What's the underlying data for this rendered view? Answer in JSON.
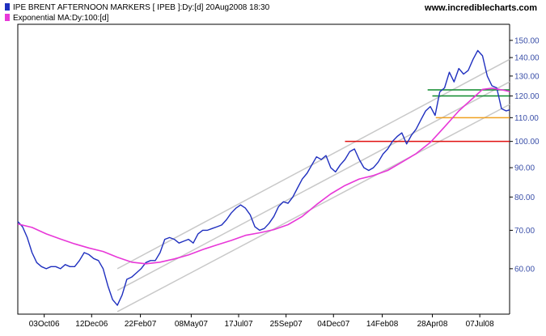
{
  "header": {
    "legend": [
      {
        "label": "IPE BRENT AFTERNOON MARKERS [ IPEB ]:Dy:[d]  20Aug2008 18:30",
        "color": "#1f2fbf"
      },
      {
        "label": "Exponential MA:Dy:100:[d]",
        "color": "#e838d8"
      }
    ],
    "brand": "www.incrediblecharts.com"
  },
  "chart_data": {
    "type": "line",
    "y_scale": "log",
    "ylim": [
      50,
      160
    ],
    "y_ticks": [
      60,
      70,
      80,
      90,
      100,
      110,
      120,
      130,
      140,
      150
    ],
    "y_tick_labels": [
      "60.00",
      "70.00",
      "80.00",
      "90.00",
      "100.00",
      "110.00",
      "120.00",
      "130.00",
      "140.00",
      "150.00"
    ],
    "xlim": [
      "2006-08-25",
      "2008-08-20"
    ],
    "x_ticks": [
      "2006-10-03",
      "2006-12-12",
      "2007-02-22",
      "2007-05-08",
      "2007-07-17",
      "2007-09-25",
      "2007-12-04",
      "2008-02-14",
      "2008-04-28",
      "2008-07-07"
    ],
    "x_tick_labels": [
      "03Oct06",
      "12Dec06",
      "22Feb07",
      "08May07",
      "17Jul07",
      "25Sep07",
      "04Dec07",
      "14Feb08",
      "28Apr08",
      "07Jul08"
    ],
    "series": [
      {
        "name": "IPE BRENT AFTERNOON MARKERS",
        "color": "#1f2fbf",
        "points": [
          [
            "2006-08-25",
            72.5
          ],
          [
            "2006-09-01",
            71.0
          ],
          [
            "2006-09-08",
            68.0
          ],
          [
            "2006-09-15",
            64.0
          ],
          [
            "2006-09-22",
            61.5
          ],
          [
            "2006-09-29",
            60.5
          ],
          [
            "2006-10-06",
            60.0
          ],
          [
            "2006-10-13",
            60.5
          ],
          [
            "2006-10-20",
            60.5
          ],
          [
            "2006-10-27",
            60.0
          ],
          [
            "2006-11-03",
            61.0
          ],
          [
            "2006-11-10",
            60.5
          ],
          [
            "2006-11-17",
            60.5
          ],
          [
            "2006-11-24",
            62.0
          ],
          [
            "2006-12-01",
            64.0
          ],
          [
            "2006-12-08",
            63.5
          ],
          [
            "2006-12-15",
            62.5
          ],
          [
            "2006-12-22",
            62.0
          ],
          [
            "2006-12-29",
            60.0
          ],
          [
            "2007-01-05",
            56.0
          ],
          [
            "2007-01-12",
            53.0
          ],
          [
            "2007-01-19",
            51.8
          ],
          [
            "2007-01-26",
            54.0
          ],
          [
            "2007-02-02",
            57.5
          ],
          [
            "2007-02-09",
            58.0
          ],
          [
            "2007-02-16",
            59.0
          ],
          [
            "2007-02-23",
            60.0
          ],
          [
            "2007-03-02",
            61.5
          ],
          [
            "2007-03-09",
            62.0
          ],
          [
            "2007-03-16",
            62.0
          ],
          [
            "2007-03-23",
            64.0
          ],
          [
            "2007-03-30",
            67.5
          ],
          [
            "2007-04-06",
            68.0
          ],
          [
            "2007-04-13",
            67.5
          ],
          [
            "2007-04-20",
            66.5
          ],
          [
            "2007-04-27",
            67.0
          ],
          [
            "2007-05-04",
            67.5
          ],
          [
            "2007-05-11",
            66.5
          ],
          [
            "2007-05-18",
            69.0
          ],
          [
            "2007-05-25",
            70.0
          ],
          [
            "2007-06-01",
            70.0
          ],
          [
            "2007-06-08",
            70.5
          ],
          [
            "2007-06-15",
            71.0
          ],
          [
            "2007-06-22",
            71.5
          ],
          [
            "2007-06-29",
            73.0
          ],
          [
            "2007-07-06",
            75.0
          ],
          [
            "2007-07-13",
            76.5
          ],
          [
            "2007-07-20",
            77.5
          ],
          [
            "2007-07-27",
            76.5
          ],
          [
            "2007-08-03",
            74.5
          ],
          [
            "2007-08-10",
            71.0
          ],
          [
            "2007-08-17",
            70.0
          ],
          [
            "2007-08-24",
            70.5
          ],
          [
            "2007-08-31",
            72.0
          ],
          [
            "2007-09-07",
            74.0
          ],
          [
            "2007-09-14",
            77.0
          ],
          [
            "2007-09-21",
            78.5
          ],
          [
            "2007-09-28",
            78.0
          ],
          [
            "2007-10-05",
            80.0
          ],
          [
            "2007-10-12",
            83.0
          ],
          [
            "2007-10-19",
            86.0
          ],
          [
            "2007-10-26",
            88.0
          ],
          [
            "2007-11-02",
            91.0
          ],
          [
            "2007-11-09",
            94.0
          ],
          [
            "2007-11-16",
            93.0
          ],
          [
            "2007-11-23",
            94.5
          ],
          [
            "2007-11-30",
            90.0
          ],
          [
            "2007-12-07",
            88.5
          ],
          [
            "2007-12-14",
            91.0
          ],
          [
            "2007-12-21",
            93.0
          ],
          [
            "2007-12-28",
            96.0
          ],
          [
            "2008-01-04",
            97.0
          ],
          [
            "2008-01-11",
            93.0
          ],
          [
            "2008-01-18",
            90.0
          ],
          [
            "2008-01-25",
            89.0
          ],
          [
            "2008-02-01",
            90.0
          ],
          [
            "2008-02-08",
            92.0
          ],
          [
            "2008-02-15",
            95.0
          ],
          [
            "2008-02-22",
            97.0
          ],
          [
            "2008-02-29",
            100.0
          ],
          [
            "2008-03-07",
            102.0
          ],
          [
            "2008-03-14",
            103.5
          ],
          [
            "2008-03-21",
            99.0
          ],
          [
            "2008-03-28",
            102.5
          ],
          [
            "2008-04-04",
            105.0
          ],
          [
            "2008-04-11",
            109.0
          ],
          [
            "2008-04-18",
            113.0
          ],
          [
            "2008-04-25",
            115.0
          ],
          [
            "2008-05-02",
            111.0
          ],
          [
            "2008-05-09",
            122.0
          ],
          [
            "2008-05-16",
            124.0
          ],
          [
            "2008-05-23",
            132.0
          ],
          [
            "2008-05-30",
            127.0
          ],
          [
            "2008-06-06",
            134.0
          ],
          [
            "2008-06-13",
            131.0
          ],
          [
            "2008-06-20",
            133.0
          ],
          [
            "2008-06-27",
            139.0
          ],
          [
            "2008-07-04",
            144.0
          ],
          [
            "2008-07-11",
            141.0
          ],
          [
            "2008-07-18",
            130.0
          ],
          [
            "2008-07-25",
            125.0
          ],
          [
            "2008-08-01",
            124.0
          ],
          [
            "2008-08-08",
            114.0
          ],
          [
            "2008-08-15",
            113.0
          ],
          [
            "2008-08-20",
            113.5
          ]
        ]
      },
      {
        "name": "Exponential MA:Dy:100:[d]",
        "color": "#e838d8",
        "points": [
          [
            "2006-08-25",
            71.8
          ],
          [
            "2006-09-15",
            70.8
          ],
          [
            "2006-10-06",
            69.0
          ],
          [
            "2006-10-27",
            67.6
          ],
          [
            "2006-11-17",
            66.3
          ],
          [
            "2006-12-08",
            65.2
          ],
          [
            "2006-12-29",
            64.3
          ],
          [
            "2007-01-19",
            62.8
          ],
          [
            "2007-02-09",
            61.6
          ],
          [
            "2007-03-02",
            61.2
          ],
          [
            "2007-03-23",
            61.6
          ],
          [
            "2007-04-13",
            62.4
          ],
          [
            "2007-05-04",
            63.4
          ],
          [
            "2007-05-25",
            64.8
          ],
          [
            "2007-06-15",
            66.0
          ],
          [
            "2007-07-06",
            67.2
          ],
          [
            "2007-07-27",
            68.6
          ],
          [
            "2007-08-17",
            69.3
          ],
          [
            "2007-09-07",
            70.2
          ],
          [
            "2007-09-28",
            71.6
          ],
          [
            "2007-10-19",
            74.0
          ],
          [
            "2007-11-09",
            77.6
          ],
          [
            "2007-11-30",
            81.0
          ],
          [
            "2007-12-21",
            83.8
          ],
          [
            "2008-01-11",
            86.0
          ],
          [
            "2008-02-01",
            87.2
          ],
          [
            "2008-02-22",
            89.0
          ],
          [
            "2008-03-14",
            92.0
          ],
          [
            "2008-04-04",
            95.2
          ],
          [
            "2008-04-25",
            99.6
          ],
          [
            "2008-05-16",
            106.0
          ],
          [
            "2008-06-06",
            113.0
          ],
          [
            "2008-06-27",
            119.0
          ],
          [
            "2008-07-11",
            123.2
          ],
          [
            "2008-07-25",
            123.8
          ],
          [
            "2008-08-08",
            123.0
          ],
          [
            "2008-08-20",
            122.2
          ]
        ]
      }
    ],
    "trend_channels": [
      {
        "color": "#c8c8c8",
        "start": [
          "2007-01-19",
          60.0
        ],
        "end": [
          "2008-08-20",
          139.0
        ]
      },
      {
        "color": "#c8c8c8",
        "start": [
          "2007-01-19",
          55.0
        ],
        "end": [
          "2008-08-20",
          127.0
        ]
      },
      {
        "color": "#c8c8c8",
        "start": [
          "2007-01-19",
          50.5
        ],
        "end": [
          "2008-08-20",
          116.0
        ]
      }
    ],
    "horizontal_lines": [
      {
        "color": "#0d8a2c",
        "value": 123.0,
        "from": "2008-04-21",
        "to": "2008-08-20"
      },
      {
        "color": "#0d8a2c",
        "value": 120.0,
        "from": "2008-04-28",
        "to": "2008-08-20"
      },
      {
        "color": "#f0a020",
        "value": 110.0,
        "from": "2008-05-03",
        "to": "2008-08-20"
      },
      {
        "color": "#e01010",
        "value": 100.0,
        "from": "2007-12-21",
        "to": "2008-08-20"
      }
    ],
    "grid": false,
    "legend_position": "top-left"
  }
}
